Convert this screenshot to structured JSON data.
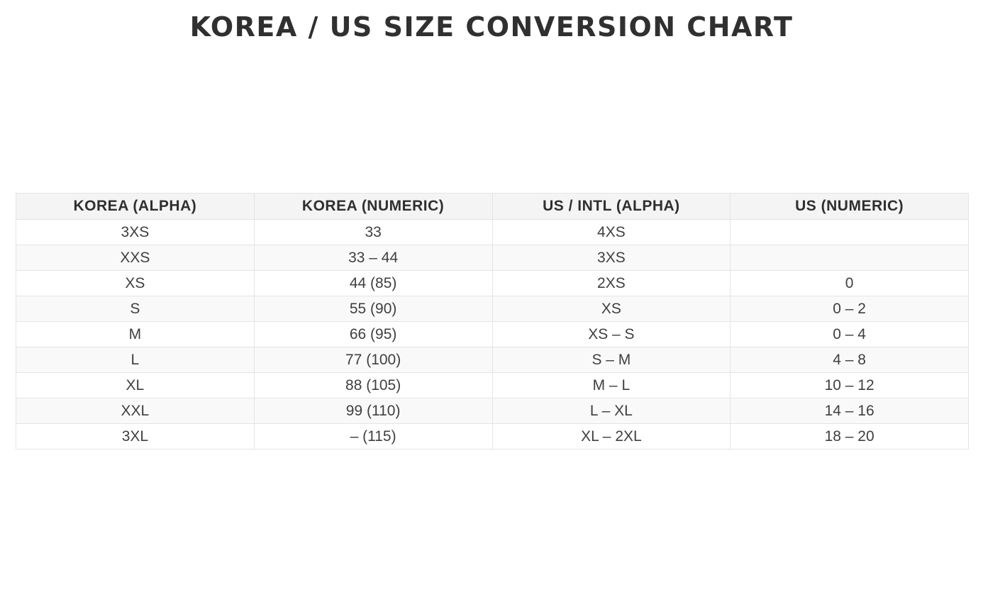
{
  "page": {
    "title": "KOREA / US SIZE CONVERSION CHART"
  },
  "colors": {
    "title_text": "#303030",
    "header_bg": "#f4f4f4",
    "row_alt_bg": "#f9f9f9",
    "border": "#e4e4e4",
    "cell_text": "#3f3f3f",
    "background": "#ffffff"
  },
  "chart_data": {
    "type": "table",
    "title": "KOREA / US SIZE CONVERSION CHART",
    "columns": [
      "KOREA (ALPHA)",
      "KOREA (NUMERIC)",
      "US / INTL (ALPHA)",
      "US (NUMERIC)"
    ],
    "rows": [
      [
        "3XS",
        "33",
        "4XS",
        ""
      ],
      [
        "XXS",
        "33 – 44",
        "3XS",
        ""
      ],
      [
        "XS",
        "44 (85)",
        "2XS",
        "0"
      ],
      [
        "S",
        "55 (90)",
        "XS",
        "0 – 2"
      ],
      [
        "M",
        "66 (95)",
        "XS – S",
        "0 – 4"
      ],
      [
        "L",
        "77 (100)",
        "S – M",
        "4 – 8"
      ],
      [
        "XL",
        "88 (105)",
        "M – L",
        "10 – 12"
      ],
      [
        "XXL",
        "99 (110)",
        "L – XL",
        "14 – 16"
      ],
      [
        "3XL",
        "– (115)",
        "XL – 2XL",
        "18 – 20"
      ]
    ],
    "layout": {
      "columns_equal_width": true,
      "zebra_striping": true,
      "text_align": "center"
    }
  }
}
